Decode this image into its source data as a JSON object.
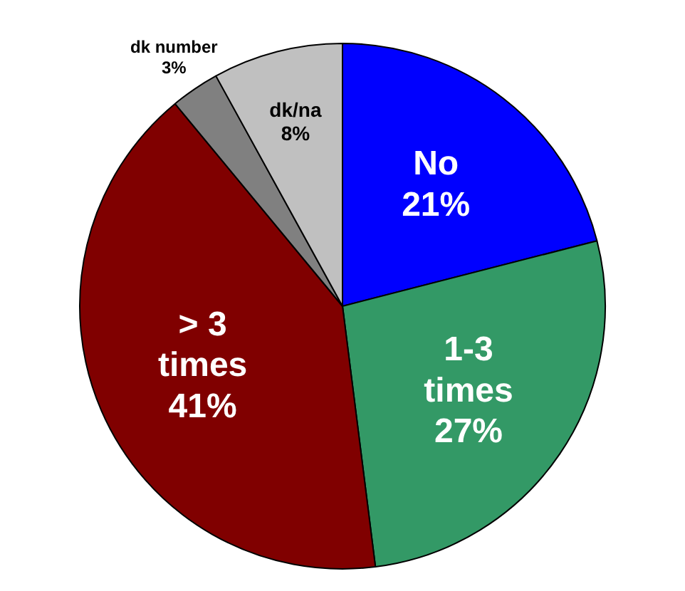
{
  "chart_data": {
    "type": "pie",
    "categories": [
      "No",
      "1-3 times",
      "> 3 times",
      "dk number",
      "dk/na"
    ],
    "values": [
      21,
      27,
      41,
      3,
      8
    ],
    "colors": [
      "#0000ff",
      "#339966",
      "#800000",
      "#808080",
      "#c0c0c0"
    ],
    "value_labels": [
      "21%",
      "27%",
      "41%",
      "3%",
      "8%"
    ],
    "legend": false
  }
}
